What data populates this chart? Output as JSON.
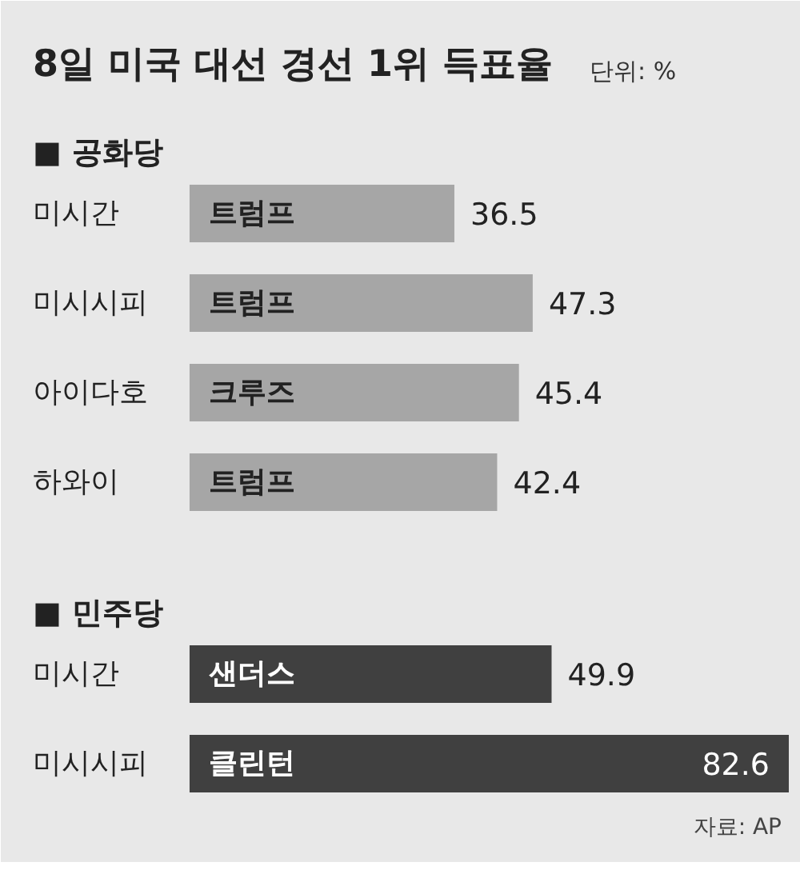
{
  "chart_data": {
    "type": "bar",
    "orientation": "horizontal",
    "title": "8일 미국 대선 경선 1위 득표율",
    "subtitle": "단위: %",
    "categories": [
      "미시간",
      "미시시피",
      "아이다호",
      "하와이",
      "미시간",
      "미시시피"
    ],
    "series": [
      {
        "name": "■ 공화당",
        "color": "#a6a6a6",
        "values": [
          36.5,
          47.3,
          45.4,
          42.4,
          null,
          null
        ]
      },
      {
        "name": "■ 민주당",
        "color": "#404040",
        "values": [
          null,
          null,
          null,
          null,
          49.9,
          82.6
        ]
      }
    ],
    "data_labels": true,
    "annotations": [
      "트럼프",
      "트럼프",
      "크루즈",
      "트럼프",
      "샌더스",
      "클린턴",
      "자료: AP"
    ]
  }
}
